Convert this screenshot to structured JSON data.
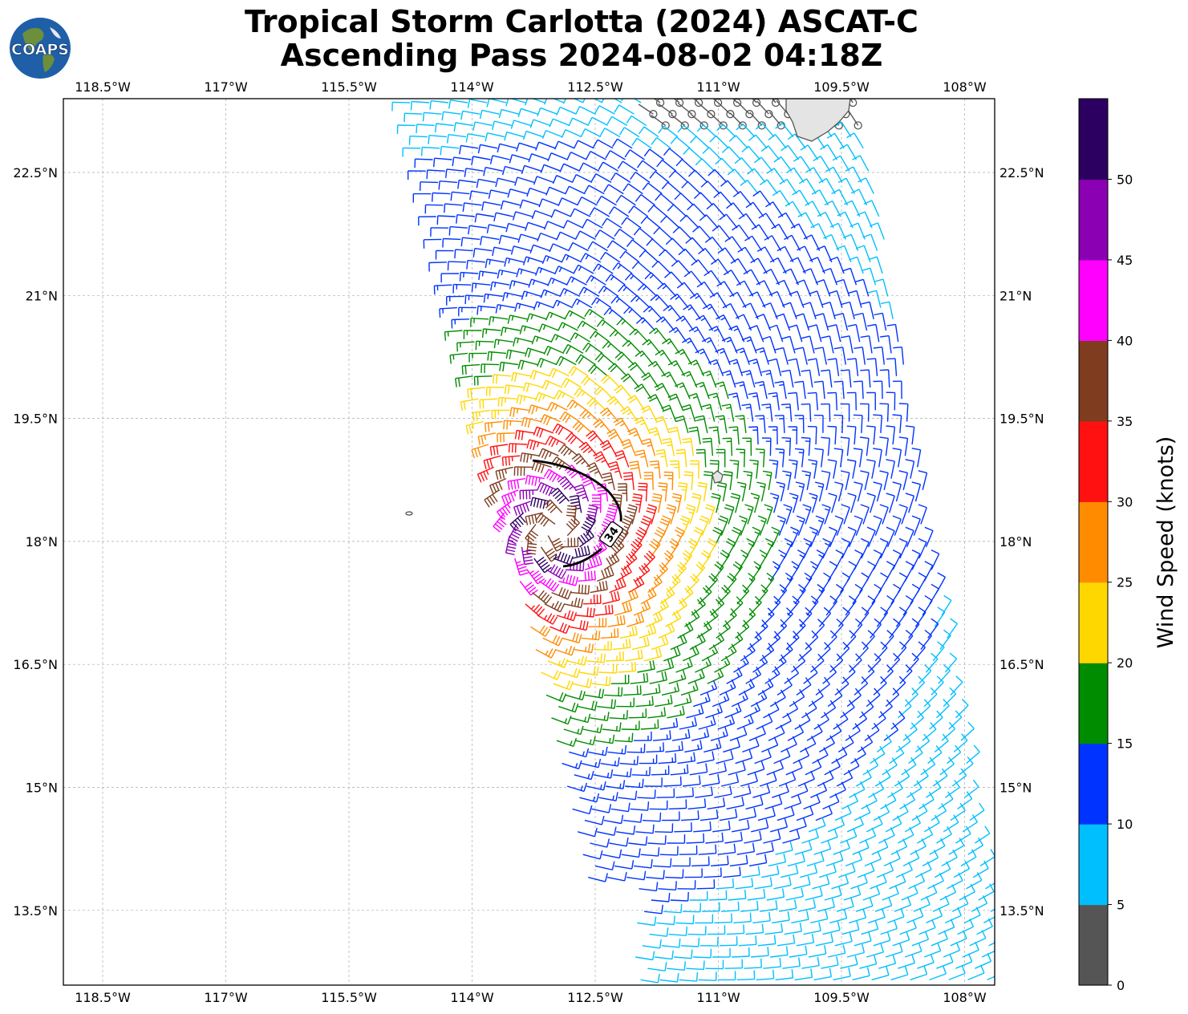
{
  "header": {
    "title_line1": "Tropical Storm Carlotta (2024) ASCAT-C",
    "title_line2": "Ascending Pass 2024-08-02 04:18Z",
    "logo_text": "COAPS"
  },
  "map": {
    "lon_labels": [
      "118.5°W",
      "117°W",
      "115.5°W",
      "114°W",
      "112.5°W",
      "111°W",
      "109.5°W",
      "108°W"
    ],
    "lat_labels": [
      "22.5°N",
      "21°N",
      "19.5°N",
      "18°N",
      "16.5°N",
      "15°N",
      "13.5°N"
    ],
    "contour_label": "34",
    "gridlines": true
  },
  "colorbar": {
    "label": "Wind Speed (knots)",
    "ticks": [
      "0",
      "5",
      "10",
      "15",
      "20",
      "25",
      "30",
      "35",
      "40",
      "45",
      "50"
    ],
    "colors": [
      "#555555",
      "#00bfff",
      "#0033ff",
      "#008c00",
      "#ffd700",
      "#ff8c00",
      "#ff1111",
      "#7f3c1e",
      "#ff00ff",
      "#8b00b3",
      "#2c0060"
    ]
  }
}
